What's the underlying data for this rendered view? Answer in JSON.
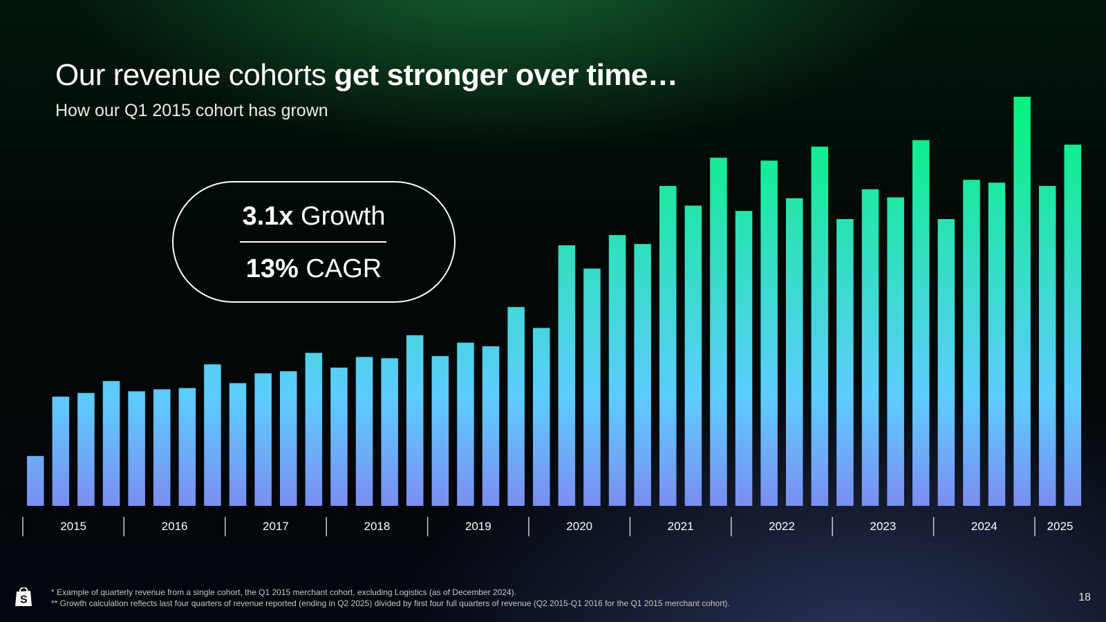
{
  "slide": {
    "title_regular": "Our revenue cohorts ",
    "title_bold": "get stronger over time…",
    "subtitle": "How our Q1 2015 cohort has grown",
    "page_number": "18"
  },
  "callout": {
    "growth_value": "3.1x",
    "growth_label": " Growth",
    "cagr_value": "13%",
    "cagr_label": " CAGR"
  },
  "footnotes": {
    "note1": "* Example of quarterly revenue from a single cohort, the Q1 2015 merchant cohort, excluding Logistics (as of December 2024).",
    "note2": "** Growth calculation reflects last four quarters of revenue reported (ending in Q2 2025) divided by first four full quarters of revenue (Q2 2015-Q1 2016 for the Q1 2015 merchant cohort)."
  },
  "logo": {
    "icon": "shopping-bag-logo-icon"
  },
  "colors": {
    "bar_top": "#00f57a",
    "bar_mid": "#5ecbff",
    "bar_bottom": "#7b8ef0",
    "axis": "#c9cfcc"
  },
  "chart_data": {
    "type": "bar",
    "title": "",
    "xlabel": "",
    "ylabel": "",
    "ylim": [
      0,
      100
    ],
    "grid": false,
    "legend": "none",
    "years": [
      {
        "label": "2015",
        "quarters": 4
      },
      {
        "label": "2016",
        "quarters": 4
      },
      {
        "label": "2017",
        "quarters": 4
      },
      {
        "label": "2018",
        "quarters": 4
      },
      {
        "label": "2019",
        "quarters": 4
      },
      {
        "label": "2020",
        "quarters": 4
      },
      {
        "label": "2021",
        "quarters": 4
      },
      {
        "label": "2022",
        "quarters": 4
      },
      {
        "label": "2023",
        "quarters": 4
      },
      {
        "label": "2024",
        "quarters": 4
      },
      {
        "label": "2025",
        "quarters": 2
      }
    ],
    "values": [
      12.2,
      26.7,
      27.6,
      30.5,
      28.0,
      28.5,
      28.8,
      34.6,
      30.0,
      32.4,
      32.9,
      37.4,
      33.8,
      36.4,
      36.1,
      41.7,
      36.6,
      39.9,
      39.0,
      48.6,
      43.5,
      63.7,
      58.0,
      66.2,
      64.0,
      78.2,
      73.4,
      85.1,
      72.1,
      84.4,
      75.2,
      87.8,
      70.1,
      77.4,
      75.4,
      89.4,
      70.1,
      79.7,
      79.0,
      100.0,
      78.2,
      88.3
    ]
  }
}
